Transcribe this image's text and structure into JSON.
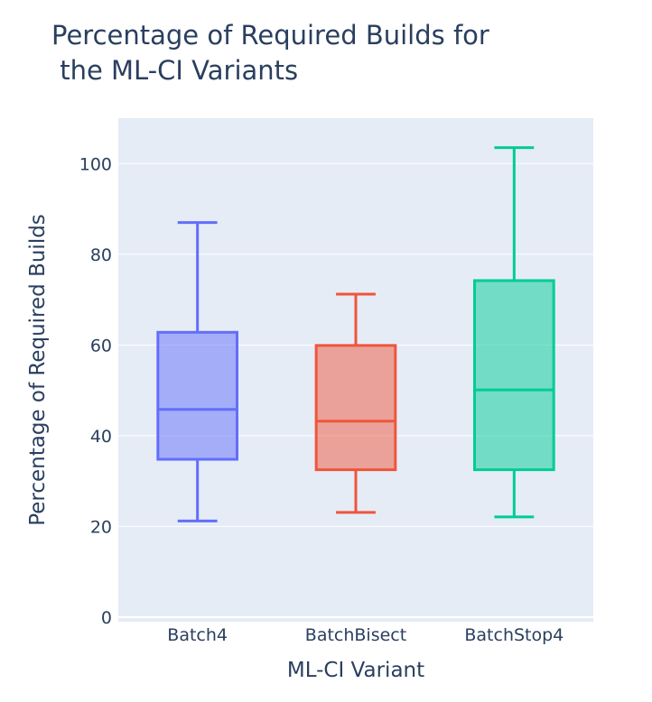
{
  "chart_data": {
    "type": "box",
    "title": [
      "Percentage of Required Builds for",
      " the ML-CI Variants"
    ],
    "xlabel": "ML-CI Variant",
    "ylabel": "Percentage of Required Builds",
    "ylim": [
      -1,
      110
    ],
    "yticks": [
      0,
      20,
      40,
      60,
      80,
      100
    ],
    "grid": true,
    "legend": "none",
    "categories": [
      "Batch4",
      "BatchBisect",
      "BatchStop4"
    ],
    "series": [
      {
        "category": "Batch4",
        "min": 21.2,
        "q1": 34.8,
        "median": 45.8,
        "q3": 62.8,
        "max": 87.0,
        "color": "#636efa"
      },
      {
        "category": "BatchBisect",
        "min": 23.1,
        "q1": 32.5,
        "median": 43.2,
        "q3": 59.9,
        "max": 71.2,
        "color": "#ef553b"
      },
      {
        "category": "BatchStop4",
        "min": 22.1,
        "q1": 32.5,
        "median": 50.1,
        "q3": 74.2,
        "max": 103.5,
        "color": "#00cc96"
      }
    ]
  }
}
